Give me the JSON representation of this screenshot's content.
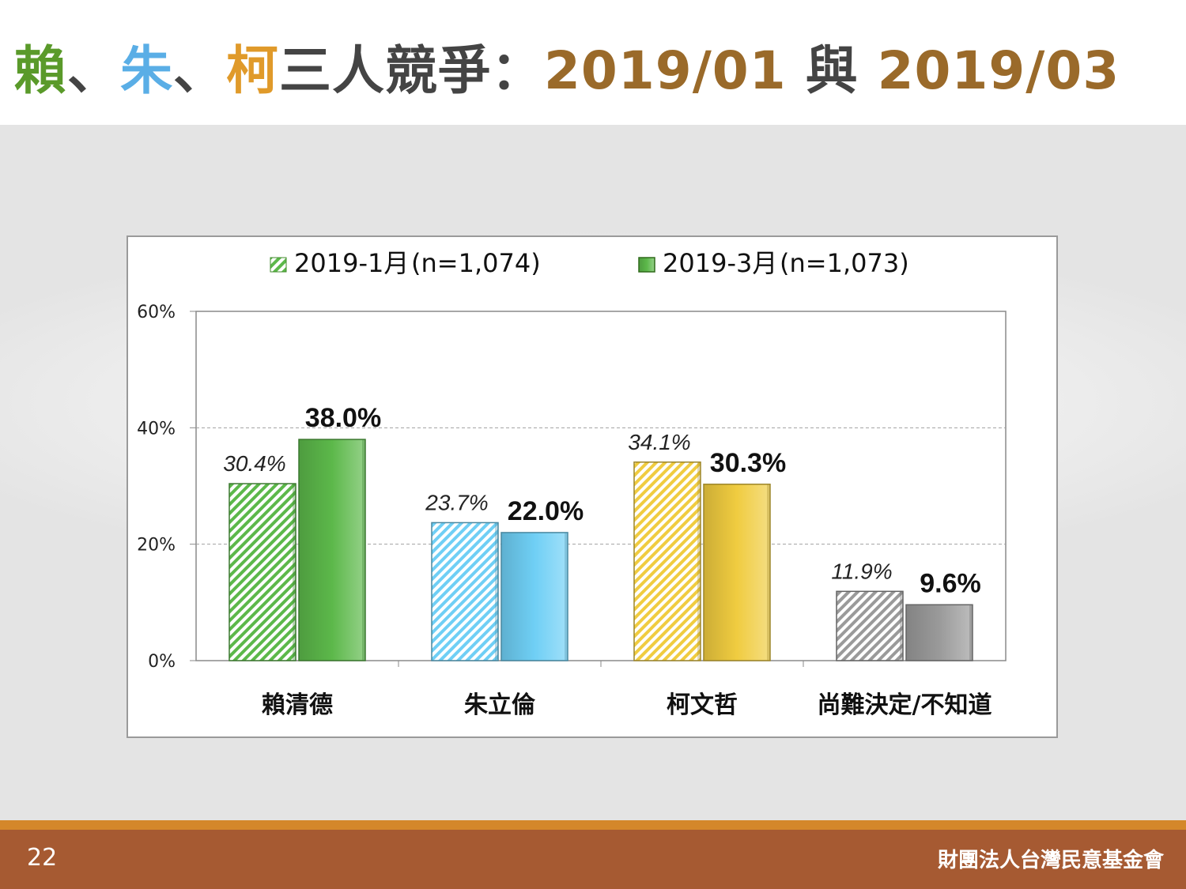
{
  "header": {
    "title_parts": [
      {
        "text": "賴",
        "color": "#5a9a2a"
      },
      {
        "text": "、",
        "color": "#444444"
      },
      {
        "text": "朱",
        "color": "#5aaee6"
      },
      {
        "text": "、",
        "color": "#444444"
      },
      {
        "text": "柯",
        "color": "#e09a2a"
      },
      {
        "text": "三人競爭：",
        "color": "#444444"
      },
      {
        "text": "2019/01 ",
        "color": "#9a6a2a"
      },
      {
        "text": "與 ",
        "color": "#444444"
      },
      {
        "text": "2019/03",
        "color": "#9a6a2a"
      }
    ]
  },
  "chart_data": {
    "type": "bar",
    "categories": [
      "賴清德",
      "朱立倫",
      "柯文哲",
      "尚難決定/不知道"
    ],
    "series": [
      {
        "name": "2019-1月 (n=1,074)",
        "values": [
          30.4,
          23.7,
          34.1,
          11.9
        ],
        "labels": [
          "30.4%",
          "23.7%",
          "34.1%",
          "11.9%"
        ],
        "pattern": "hatched"
      },
      {
        "name": "2019-3月 (n=1,073)",
        "values": [
          38.0,
          22.0,
          30.3,
          9.6
        ],
        "labels": [
          "38.0%",
          "22.0%",
          "30.3%",
          "9.6%"
        ],
        "pattern": "solid"
      }
    ],
    "bar_colors": [
      "#5cb84a",
      "#6fcff5",
      "#f0cc40",
      "#9a9a9a"
    ],
    "yticks": [
      "0%",
      "20%",
      "40%",
      "60%"
    ],
    "ylim": [
      0,
      60
    ],
    "grid": true,
    "legend_position": "top",
    "legend": [
      {
        "label": "2019-1月",
        "sample": "(n=1,074)"
      },
      {
        "label": "2019-3月",
        "sample": "(n=1,073)"
      }
    ]
  },
  "footer": {
    "page_number": "22",
    "organization": "財團法人台灣民意基金會"
  }
}
